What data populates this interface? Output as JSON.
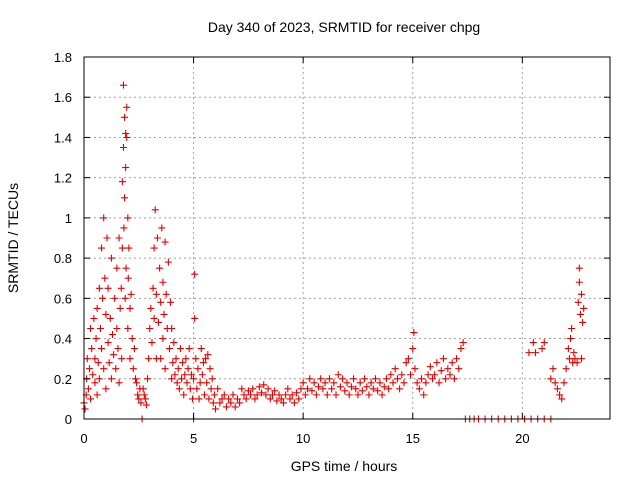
{
  "chart_data": {
    "type": "scatter",
    "title": "Day 340 of 2023, SRMTID for receiver chpg",
    "xlabel": "GPS time / hours",
    "ylabel": "SRMTID / TECUs",
    "xlim": [
      0,
      24
    ],
    "ylim": [
      0,
      1.8
    ],
    "x_ticks": [
      0,
      5,
      10,
      15,
      20
    ],
    "x_tick_labels": [
      "0",
      "5",
      "10",
      "15",
      "20"
    ],
    "y_ticks": [
      0,
      0.2,
      0.4,
      0.6,
      0.8,
      1,
      1.2,
      1.4,
      1.6,
      1.8
    ],
    "y_tick_labels": [
      "0",
      "0.2",
      "0.4",
      "0.6",
      "0.8",
      "1",
      "1.2",
      "1.4",
      "1.6",
      "1.8"
    ],
    "grid": true,
    "marker": "+",
    "series_color": "#e00000",
    "series": [
      {
        "name": "SRMTID",
        "points": [
          [
            0.0,
            0.08
          ],
          [
            0.05,
            0.05
          ],
          [
            0.1,
            0.12
          ],
          [
            0.12,
            0.2
          ],
          [
            0.15,
            0.3
          ],
          [
            0.2,
            0.15
          ],
          [
            0.25,
            0.25
          ],
          [
            0.3,
            0.45
          ],
          [
            0.3,
            0.1
          ],
          [
            0.35,
            0.35
          ],
          [
            0.4,
            0.22
          ],
          [
            0.45,
            0.5
          ],
          [
            0.5,
            0.3
          ],
          [
            0.5,
            0.18
          ],
          [
            0.55,
            0.4
          ],
          [
            0.6,
            0.12
          ],
          [
            0.6,
            0.55
          ],
          [
            0.65,
            0.28
          ],
          [
            0.7,
            0.65
          ],
          [
            0.7,
            0.2
          ],
          [
            0.75,
            0.45
          ],
          [
            0.8,
            0.35
          ],
          [
            0.8,
            0.85
          ],
          [
            0.85,
            0.6
          ],
          [
            0.9,
            1.0
          ],
          [
            0.9,
            0.25
          ],
          [
            0.95,
            0.7
          ],
          [
            1.0,
            0.52
          ],
          [
            1.0,
            0.15
          ],
          [
            1.05,
            0.9
          ],
          [
            1.1,
            0.38
          ],
          [
            1.1,
            0.65
          ],
          [
            1.15,
            0.28
          ],
          [
            1.2,
            0.5
          ],
          [
            1.25,
            0.8
          ],
          [
            1.25,
            0.2
          ],
          [
            1.3,
            0.42
          ],
          [
            1.35,
            0.32
          ],
          [
            1.4,
            0.6
          ],
          [
            1.45,
            0.25
          ],
          [
            1.5,
            0.75
          ],
          [
            1.5,
            0.45
          ],
          [
            1.55,
            0.35
          ],
          [
            1.6,
            0.9
          ],
          [
            1.6,
            0.18
          ],
          [
            1.65,
            0.55
          ],
          [
            1.7,
            0.65
          ],
          [
            1.72,
            0.3
          ],
          [
            1.75,
            1.18
          ],
          [
            1.75,
            0.85
          ],
          [
            1.8,
            1.66
          ],
          [
            1.8,
            1.35
          ],
          [
            1.82,
            0.95
          ],
          [
            1.85,
            1.5
          ],
          [
            1.85,
            1.1
          ],
          [
            1.88,
            0.6
          ],
          [
            1.9,
            1.42
          ],
          [
            1.9,
            1.25
          ],
          [
            1.92,
            0.75
          ],
          [
            1.95,
            1.55
          ],
          [
            1.95,
            1.4
          ],
          [
            2.0,
            1.0
          ],
          [
            2.0,
            0.45
          ],
          [
            2.02,
            0.7
          ],
          [
            2.05,
            0.85
          ],
          [
            2.1,
            0.55
          ],
          [
            2.1,
            0.3
          ],
          [
            2.15,
            0.62
          ],
          [
            2.2,
            0.4
          ],
          [
            2.25,
            0.25
          ],
          [
            2.3,
            0.35
          ],
          [
            2.35,
            0.2
          ],
          [
            2.4,
            0.18
          ],
          [
            2.45,
            0.12
          ],
          [
            2.5,
            0.1
          ],
          [
            2.55,
            0.15
          ],
          [
            2.6,
            0.08
          ],
          [
            2.65,
            0.0
          ],
          [
            2.7,
            0.15
          ],
          [
            2.75,
            0.12
          ],
          [
            2.8,
            0.1
          ],
          [
            2.85,
            0.07
          ],
          [
            2.9,
            0.2
          ],
          [
            2.95,
            0.3
          ],
          [
            3.0,
            0.45
          ],
          [
            3.05,
            0.55
          ],
          [
            3.1,
            0.38
          ],
          [
            3.15,
            0.65
          ],
          [
            3.2,
            0.85
          ],
          [
            3.2,
            0.5
          ],
          [
            3.25,
            1.04
          ],
          [
            3.3,
            0.62
          ],
          [
            3.3,
            0.3
          ],
          [
            3.35,
            0.9
          ],
          [
            3.4,
            0.48
          ],
          [
            3.45,
            0.75
          ],
          [
            3.5,
            0.58
          ],
          [
            3.5,
            0.3
          ],
          [
            3.55,
            0.95
          ],
          [
            3.6,
            0.68
          ],
          [
            3.6,
            0.4
          ],
          [
            3.65,
            0.52
          ],
          [
            3.7,
            0.88
          ],
          [
            3.7,
            0.25
          ],
          [
            3.75,
            0.62
          ],
          [
            3.8,
            0.45
          ],
          [
            3.85,
            0.78
          ],
          [
            3.9,
            0.35
          ],
          [
            3.95,
            0.58
          ],
          [
            4.0,
            0.45
          ],
          [
            4.0,
            0.2
          ],
          [
            4.05,
            0.28
          ],
          [
            4.1,
            0.38
          ],
          [
            4.15,
            0.22
          ],
          [
            4.2,
            0.3
          ],
          [
            4.25,
            0.18
          ],
          [
            4.3,
            0.25
          ],
          [
            4.35,
            0.15
          ],
          [
            4.4,
            0.35
          ],
          [
            4.45,
            0.2
          ],
          [
            4.5,
            0.28
          ],
          [
            4.55,
            0.12
          ],
          [
            4.6,
            0.22
          ],
          [
            4.65,
            0.3
          ],
          [
            4.7,
            0.18
          ],
          [
            4.75,
            0.25
          ],
          [
            4.8,
            0.35
          ],
          [
            4.85,
            0.15
          ],
          [
            4.9,
            0.22
          ],
          [
            4.95,
            0.1
          ],
          [
            5.0,
            0.0
          ],
          [
            5.0,
            0.2
          ],
          [
            5.05,
            0.72
          ],
          [
            5.05,
            0.5
          ],
          [
            5.1,
            0.3
          ],
          [
            5.15,
            0.15
          ],
          [
            5.2,
            0.25
          ],
          [
            5.25,
            0.1
          ],
          [
            5.3,
            0.18
          ],
          [
            5.35,
            0.35
          ],
          [
            5.4,
            0.22
          ],
          [
            5.45,
            0.28
          ],
          [
            5.5,
            0.12
          ],
          [
            5.55,
            0.3
          ],
          [
            5.6,
            0.18
          ],
          [
            5.65,
            0.32
          ],
          [
            5.7,
            0.1
          ],
          [
            5.75,
            0.25
          ],
          [
            5.8,
            0.15
          ],
          [
            5.85,
            0.2
          ],
          [
            5.9,
            0.08
          ],
          [
            5.95,
            0.12
          ],
          [
            6.0,
            0.05
          ],
          [
            6.1,
            0.15
          ],
          [
            6.2,
            0.08
          ],
          [
            6.3,
            0.1
          ],
          [
            6.4,
            0.12
          ],
          [
            6.5,
            0.06
          ],
          [
            6.6,
            0.1
          ],
          [
            6.7,
            0.08
          ],
          [
            6.8,
            0.12
          ],
          [
            6.9,
            0.06
          ],
          [
            7.0,
            0.1
          ],
          [
            7.1,
            0.08
          ],
          [
            7.2,
            0.15
          ],
          [
            7.3,
            0.12
          ],
          [
            7.4,
            0.1
          ],
          [
            7.5,
            0.14
          ],
          [
            7.6,
            0.12
          ],
          [
            7.7,
            0.15
          ],
          [
            7.8,
            0.1
          ],
          [
            7.9,
            0.12
          ],
          [
            8.0,
            0.16
          ],
          [
            8.1,
            0.13
          ],
          [
            8.2,
            0.17
          ],
          [
            8.3,
            0.12
          ],
          [
            8.4,
            0.15
          ],
          [
            8.5,
            0.1
          ],
          [
            8.6,
            0.12
          ],
          [
            8.7,
            0.14
          ],
          [
            8.8,
            0.09
          ],
          [
            8.9,
            0.12
          ],
          [
            9.0,
            0.1
          ],
          [
            9.1,
            0.08
          ],
          [
            9.2,
            0.12
          ],
          [
            9.3,
            0.15
          ],
          [
            9.4,
            0.1
          ],
          [
            9.5,
            0.12
          ],
          [
            9.6,
            0.08
          ],
          [
            9.7,
            0.13
          ],
          [
            9.8,
            0.1
          ],
          [
            9.9,
            0.15
          ],
          [
            10.0,
            0.18
          ],
          [
            10.1,
            0.12
          ],
          [
            10.2,
            0.15
          ],
          [
            10.3,
            0.2
          ],
          [
            10.4,
            0.14
          ],
          [
            10.5,
            0.18
          ],
          [
            10.6,
            0.12
          ],
          [
            10.7,
            0.16
          ],
          [
            10.8,
            0.2
          ],
          [
            10.9,
            0.15
          ],
          [
            11.0,
            0.18
          ],
          [
            11.1,
            0.12
          ],
          [
            11.2,
            0.2
          ],
          [
            11.3,
            0.15
          ],
          [
            11.4,
            0.18
          ],
          [
            11.5,
            0.12
          ],
          [
            11.6,
            0.22
          ],
          [
            11.7,
            0.16
          ],
          [
            11.8,
            0.2
          ],
          [
            11.9,
            0.14
          ],
          [
            12.0,
            0.18
          ],
          [
            12.1,
            0.12
          ],
          [
            12.2,
            0.16
          ],
          [
            12.3,
            0.2
          ],
          [
            12.4,
            0.15
          ],
          [
            12.5,
            0.12
          ],
          [
            12.6,
            0.18
          ],
          [
            12.7,
            0.14
          ],
          [
            12.8,
            0.2
          ],
          [
            12.9,
            0.16
          ],
          [
            13.0,
            0.12
          ],
          [
            13.1,
            0.18
          ],
          [
            13.2,
            0.15
          ],
          [
            13.3,
            0.2
          ],
          [
            13.4,
            0.14
          ],
          [
            13.5,
            0.18
          ],
          [
            13.6,
            0.12
          ],
          [
            13.7,
            0.16
          ],
          [
            13.8,
            0.2
          ],
          [
            13.9,
            0.15
          ],
          [
            14.0,
            0.22
          ],
          [
            14.1,
            0.18
          ],
          [
            14.2,
            0.25
          ],
          [
            14.3,
            0.2
          ],
          [
            14.4,
            0.15
          ],
          [
            14.5,
            0.22
          ],
          [
            14.6,
            0.18
          ],
          [
            14.7,
            0.28
          ],
          [
            14.8,
            0.3
          ],
          [
            14.9,
            0.22
          ],
          [
            15.0,
            0.35
          ],
          [
            15.05,
            0.43
          ],
          [
            15.1,
            0.25
          ],
          [
            15.2,
            0.18
          ],
          [
            15.3,
            0.15
          ],
          [
            15.4,
            0.2
          ],
          [
            15.5,
            0.12
          ],
          [
            15.6,
            0.18
          ],
          [
            15.7,
            0.22
          ],
          [
            15.8,
            0.26
          ],
          [
            15.9,
            0.2
          ],
          [
            16.0,
            0.22
          ],
          [
            16.1,
            0.28
          ],
          [
            16.2,
            0.18
          ],
          [
            16.3,
            0.24
          ],
          [
            16.4,
            0.3
          ],
          [
            16.5,
            0.2
          ],
          [
            16.6,
            0.25
          ],
          [
            16.7,
            0.22
          ],
          [
            16.8,
            0.28
          ],
          [
            16.9,
            0.2
          ],
          [
            17.0,
            0.3
          ],
          [
            17.1,
            0.25
          ],
          [
            17.2,
            0.35
          ],
          [
            17.3,
            0.38
          ],
          [
            17.4,
            0.0
          ],
          [
            17.6,
            0.0
          ],
          [
            17.8,
            0.0
          ],
          [
            18.0,
            0.0
          ],
          [
            18.3,
            0.0
          ],
          [
            18.6,
            0.0
          ],
          [
            18.9,
            0.0
          ],
          [
            19.2,
            0.0
          ],
          [
            19.5,
            0.0
          ],
          [
            19.8,
            0.0
          ],
          [
            20.1,
            0.0
          ],
          [
            20.4,
            0.0
          ],
          [
            20.7,
            0.0
          ],
          [
            21.0,
            0.0
          ],
          [
            21.3,
            0.0
          ],
          [
            20.3,
            0.33
          ],
          [
            20.5,
            0.38
          ],
          [
            20.6,
            0.33
          ],
          [
            20.9,
            0.35
          ],
          [
            21.0,
            0.38
          ],
          [
            21.3,
            0.2
          ],
          [
            21.4,
            0.25
          ],
          [
            21.5,
            0.18
          ],
          [
            21.6,
            0.15
          ],
          [
            21.7,
            0.12
          ],
          [
            21.8,
            0.1
          ],
          [
            21.9,
            0.18
          ],
          [
            22.0,
            0.25
          ],
          [
            22.1,
            0.35
          ],
          [
            22.15,
            0.3
          ],
          [
            22.2,
            0.4
          ],
          [
            22.25,
            0.45
          ],
          [
            22.3,
            0.28
          ],
          [
            22.35,
            0.33
          ],
          [
            22.4,
            0.3
          ],
          [
            22.5,
            0.28
          ],
          [
            22.55,
            0.58
          ],
          [
            22.6,
            0.68
          ],
          [
            22.6,
            0.75
          ],
          [
            22.65,
            0.52
          ],
          [
            22.7,
            0.62
          ],
          [
            22.7,
            0.3
          ],
          [
            22.75,
            0.48
          ],
          [
            22.8,
            0.55
          ]
        ]
      }
    ]
  }
}
